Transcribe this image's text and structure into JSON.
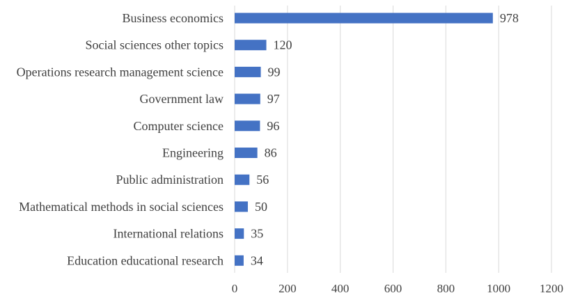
{
  "chart_data": {
    "type": "bar",
    "orientation": "horizontal",
    "title": "",
    "xlabel": "",
    "ylabel": "",
    "categories": [
      "Business economics",
      "Social sciences other topics",
      "Operations research management science",
      "Government law",
      "Computer science",
      "Engineering",
      "Public administration",
      "Mathematical methods in social sciences",
      "International relations",
      "Education educational research"
    ],
    "values": [
      978,
      120,
      99,
      97,
      96,
      86,
      56,
      50,
      35,
      34
    ],
    "xlim": [
      0,
      1200
    ],
    "xticks": [
      0,
      200,
      400,
      600,
      800,
      1000,
      1200
    ],
    "grid": "vertical",
    "legend": "none",
    "bar_color": "#4472c4",
    "data_labels": true
  }
}
